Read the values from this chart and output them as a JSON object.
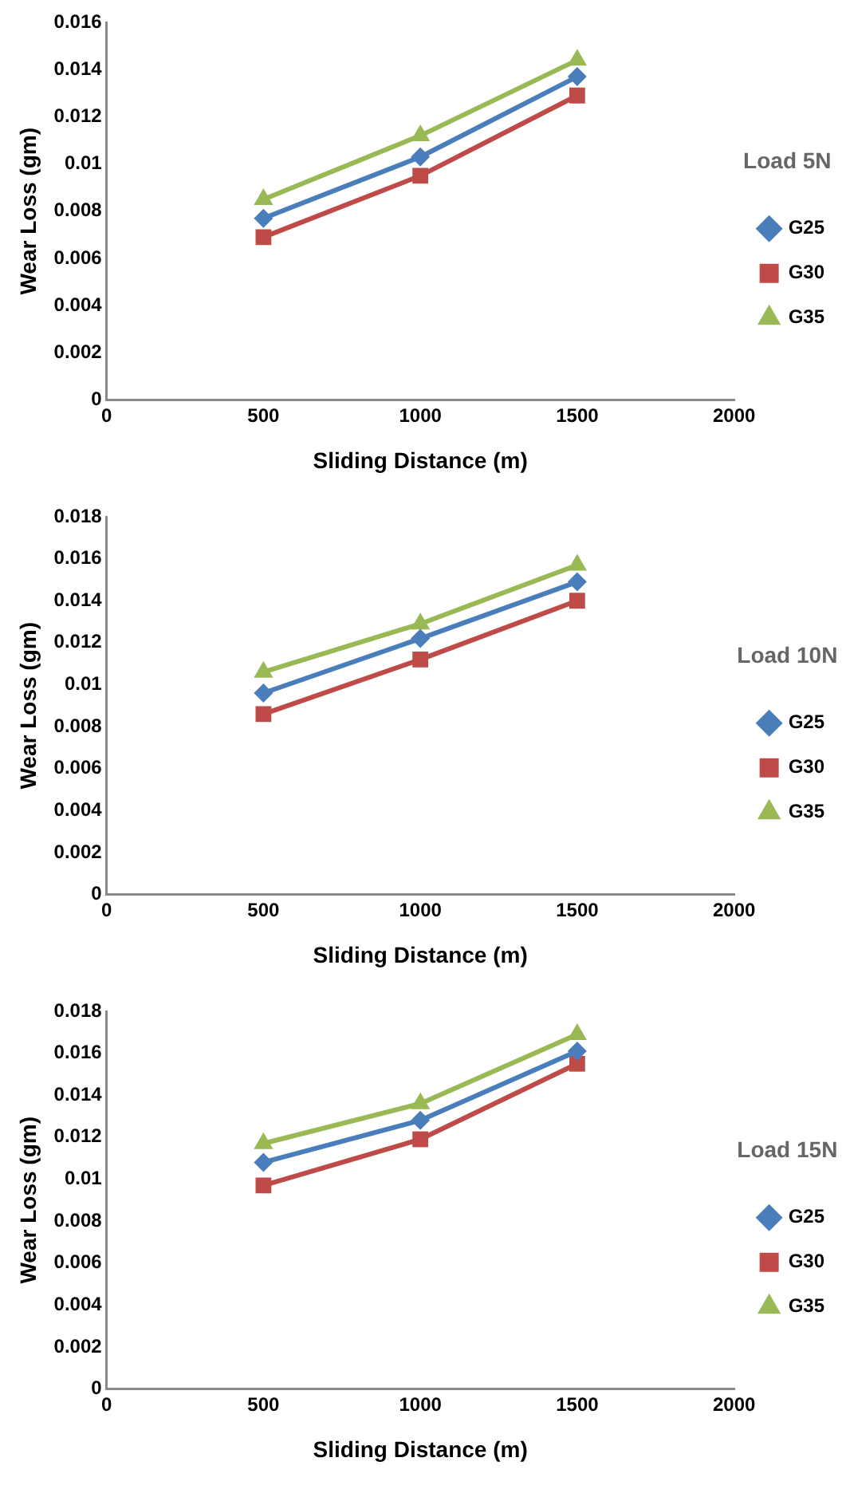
{
  "chart_data": [
    {
      "type": "line",
      "xlabel": "Sliding Distance (m)",
      "ylabel": "Wear Loss (gm)",
      "legend_title": "Load 5N",
      "legend": "right",
      "grid": false,
      "line_style": "solid",
      "x": [
        500,
        1000,
        1500
      ],
      "xlim": [
        0,
        2000
      ],
      "xticks": [
        0,
        500,
        1000,
        1500,
        2000
      ],
      "ylim": [
        0,
        0.016
      ],
      "yticks": [
        0,
        0.002,
        0.004,
        0.006,
        0.008,
        0.01,
        0.012,
        0.014,
        0.016
      ],
      "series": [
        {
          "name": "G25",
          "color": "#4a7ebb",
          "marker": "diamond",
          "values": [
            0.0077,
            0.0103,
            0.0137
          ]
        },
        {
          "name": "G30",
          "color": "#be4b48",
          "marker": "square",
          "values": [
            0.0069,
            0.0095,
            0.0129
          ]
        },
        {
          "name": "G35",
          "color": "#98b954",
          "marker": "triangle",
          "values": [
            0.0085,
            0.0112,
            0.0144
          ]
        }
      ]
    },
    {
      "type": "line",
      "xlabel": "Sliding Distance (m)",
      "ylabel": "Wear Loss (gm)",
      "legend_title": "Load 10N",
      "legend": "right",
      "grid": false,
      "line_style": "solid",
      "x": [
        500,
        1000,
        1500
      ],
      "xlim": [
        0,
        2000
      ],
      "xticks": [
        0,
        500,
        1000,
        1500,
        2000
      ],
      "ylim": [
        0,
        0.018
      ],
      "yticks": [
        0,
        0.002,
        0.004,
        0.006,
        0.008,
        0.01,
        0.012,
        0.014,
        0.016,
        0.018
      ],
      "series": [
        {
          "name": "G25",
          "color": "#4a7ebb",
          "marker": "diamond",
          "values": [
            0.0096,
            0.0122,
            0.0149
          ]
        },
        {
          "name": "G30",
          "color": "#be4b48",
          "marker": "square",
          "values": [
            0.0086,
            0.0112,
            0.014
          ]
        },
        {
          "name": "G35",
          "color": "#98b954",
          "marker": "triangle",
          "values": [
            0.0106,
            0.0129,
            0.0157
          ]
        }
      ]
    },
    {
      "type": "line",
      "xlabel": "Sliding Distance (m)",
      "ylabel": "Wear Loss (gm)",
      "legend_title": "Load 15N",
      "legend": "right",
      "grid": false,
      "line_style": "solid",
      "x": [
        500,
        1000,
        1500
      ],
      "xlim": [
        0,
        2000
      ],
      "xticks": [
        0,
        500,
        1000,
        1500,
        2000
      ],
      "ylim": [
        0,
        0.018
      ],
      "yticks": [
        0,
        0.002,
        0.004,
        0.006,
        0.008,
        0.01,
        0.012,
        0.014,
        0.016,
        0.018
      ],
      "series": [
        {
          "name": "G25",
          "color": "#4a7ebb",
          "marker": "diamond",
          "values": [
            0.0108,
            0.0128,
            0.0161
          ]
        },
        {
          "name": "G30",
          "color": "#be4b48",
          "marker": "square",
          "values": [
            0.0097,
            0.0119,
            0.0155
          ]
        },
        {
          "name": "G35",
          "color": "#98b954",
          "marker": "triangle",
          "values": [
            0.0117,
            0.0136,
            0.0169
          ]
        }
      ]
    }
  ]
}
